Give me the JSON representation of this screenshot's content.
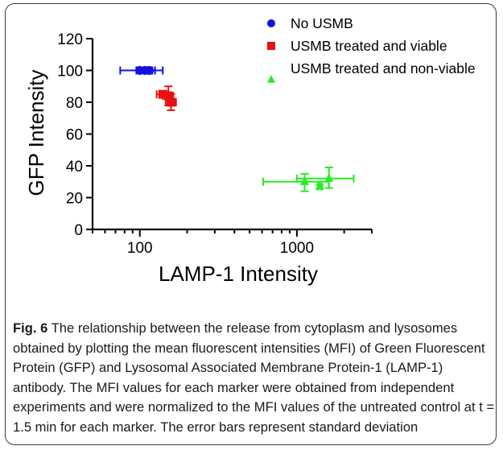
{
  "chart_data": {
    "type": "scatter",
    "xlabel": "LAMP-1 Intensity",
    "ylabel": "GFP Intensity",
    "x_scale": "log",
    "xlim": [
      50,
      3000
    ],
    "ylim": [
      0,
      120
    ],
    "x_ticks": [
      100,
      1000
    ],
    "y_ticks": [
      0,
      20,
      40,
      60,
      80,
      100,
      120
    ],
    "grid": false,
    "legend_position": "top-right",
    "series": [
      {
        "name": "No USMB",
        "color": "#1010e0",
        "marker": "circle",
        "points": [
          {
            "x": 100,
            "y": 100,
            "x_err": [
              75,
              140
            ],
            "y_err": [
              99,
              101
            ]
          },
          {
            "x": 108,
            "y": 100,
            "x_err": [
              95,
              120
            ],
            "y_err": [
              99,
              101
            ]
          },
          {
            "x": 115,
            "y": 100,
            "x_err": [
              105,
              125
            ],
            "y_err": [
              99,
              101
            ]
          }
        ]
      },
      {
        "name": "USMB treated and viable",
        "color": "#e81010",
        "marker": "square",
        "points": [
          {
            "x": 140,
            "y": 85,
            "x_err": [
              128,
              152
            ],
            "y_err": [
              83,
              87
            ]
          },
          {
            "x": 152,
            "y": 84,
            "x_err": [
              140,
              163
            ],
            "y_err": [
              78,
              90
            ]
          },
          {
            "x": 158,
            "y": 80,
            "x_err": [
              146,
              170
            ],
            "y_err": [
              75,
              85
            ]
          }
        ]
      },
      {
        "name": "USMB treated and non-viable",
        "color": "#22ee22",
        "marker": "triangle",
        "points": [
          {
            "x": 1120,
            "y": 30,
            "x_err": [
              610,
              1600
            ],
            "y_err": [
              24,
              35
            ]
          },
          {
            "x": 1400,
            "y": 27,
            "x_err": [
              1360,
              1440
            ],
            "y_err": [
              26,
              28
            ]
          },
          {
            "x": 1600,
            "y": 32,
            "x_err": [
              1000,
              2300
            ],
            "y_err": [
              26,
              39
            ]
          }
        ]
      }
    ]
  },
  "caption": {
    "label": "Fig. 6",
    "text": "The relationship between the release from cytoplasm and lysosomes obtained by plotting the mean fluorescent intensities (MFI) of Green Fluorescent Protein (GFP) and Lysosomal Associated Membrane Protein-1 (LAMP-1) antibody. The MFI values for each marker were obtained from independent experiments and were normalized to the MFI values of the untreated control at t = 1.5 min for each marker. The error bars represent standard deviation"
  }
}
